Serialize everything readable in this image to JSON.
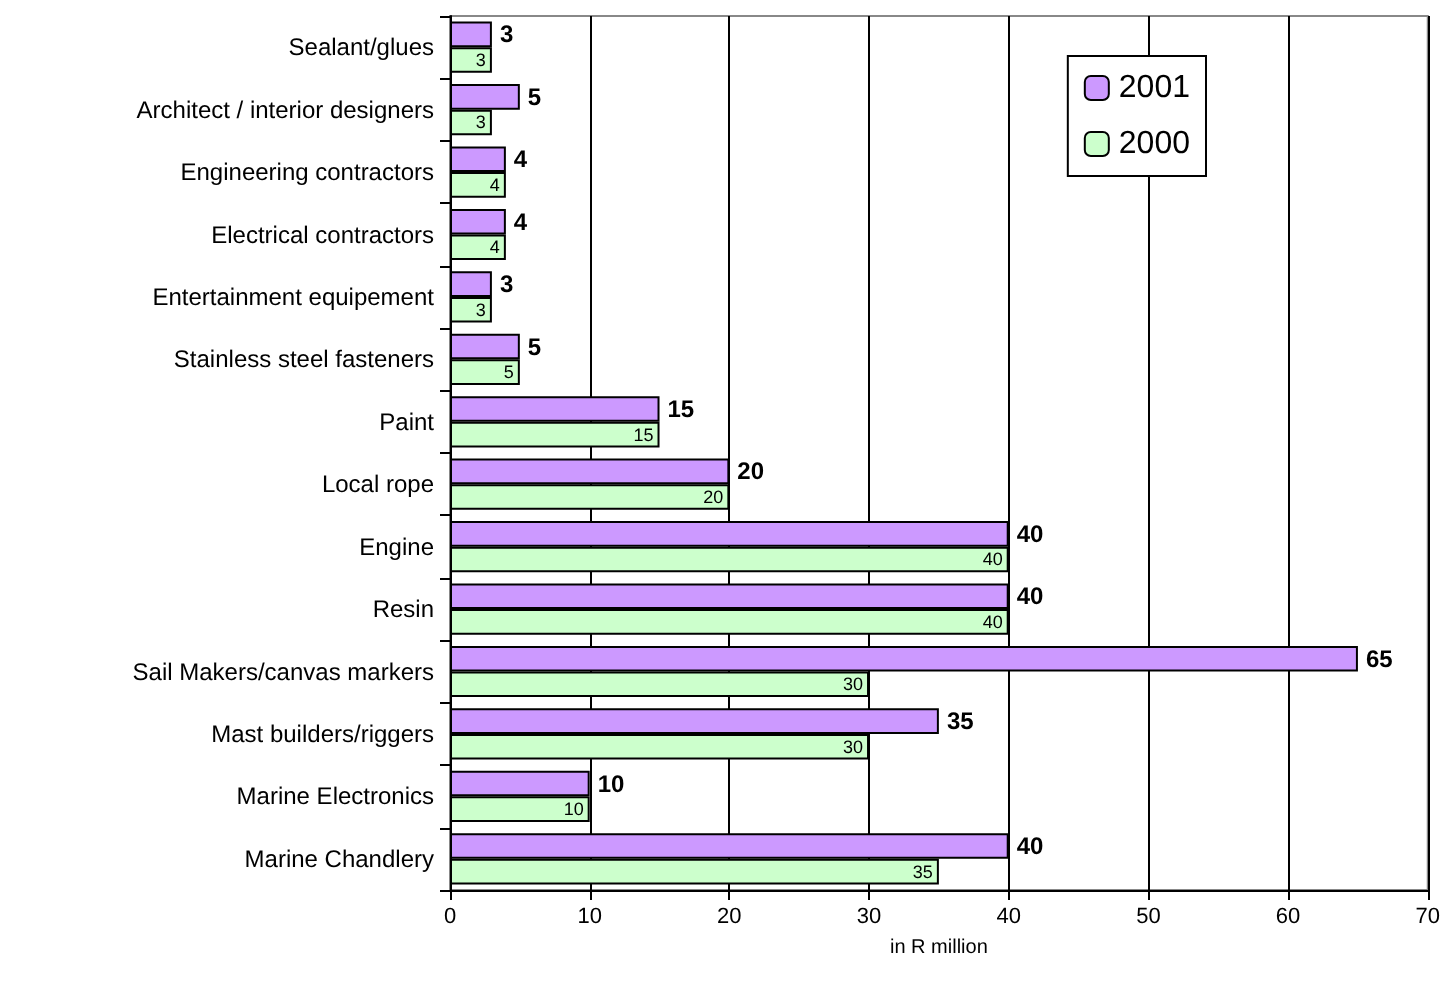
{
  "chart_data": {
    "type": "bar",
    "orientation": "horizontal",
    "xlabel": "in R million",
    "categories": [
      "Sealant/glues",
      "Architect / interior designers",
      "Engineering contractors",
      "Electrical contractors",
      "Entertainment equipement",
      "Stainless steel fasteners",
      "Paint",
      "Local rope",
      "Engine",
      "Resin",
      "Sail Makers/canvas markers",
      "Mast builders/riggers",
      "Marine Electronics",
      "Marine Chandlery"
    ],
    "series": [
      {
        "name": "2001",
        "color": "#cc99ff",
        "values": [
          3,
          5,
          4,
          4,
          3,
          5,
          15,
          20,
          40,
          40,
          65,
          35,
          10,
          40
        ]
      },
      {
        "name": "2000",
        "color": "#ccffcc",
        "values": [
          3,
          3,
          4,
          4,
          3,
          5,
          15,
          20,
          40,
          40,
          30,
          30,
          10,
          35
        ]
      }
    ],
    "xlim": [
      0,
      70
    ],
    "xticks": [
      0,
      10,
      20,
      30,
      40,
      50,
      60,
      70
    ],
    "grid": "x",
    "legend": "top right",
    "data_labels": true
  }
}
